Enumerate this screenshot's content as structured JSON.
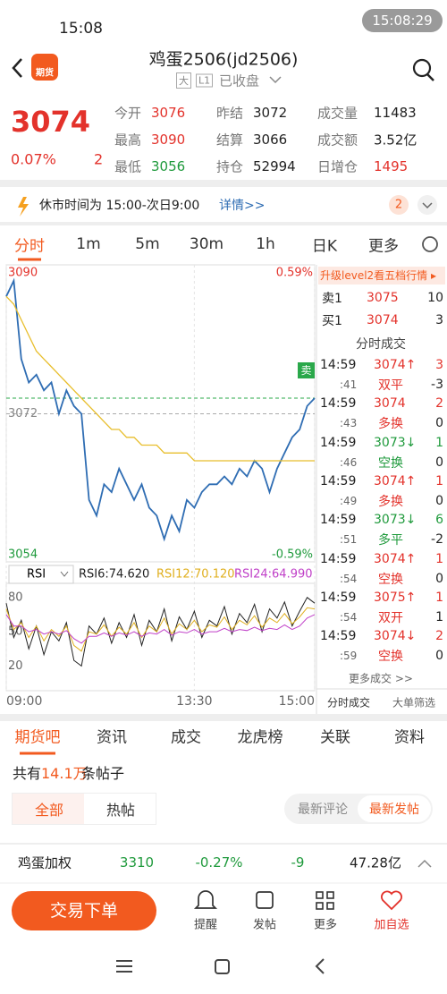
{
  "status_bar": {
    "time": "15:08",
    "clock": "15:08:29"
  },
  "header": {
    "logo": "期货",
    "title": "鸡蛋2506(jd2506)",
    "tags": [
      "大",
      "L1"
    ],
    "status": "已收盘"
  },
  "quote": {
    "price": "3074",
    "change_pct": "0.07%",
    "change": "2",
    "color": "#e3322b",
    "fields": [
      {
        "label": "今开",
        "value": "3076",
        "color": "#e3322b"
      },
      {
        "label": "昨结",
        "value": "3072",
        "color": "#222222"
      },
      {
        "label": "成交量",
        "value": "11483",
        "color": "#222222"
      },
      {
        "label": "最高",
        "value": "3090",
        "color": "#e3322b"
      },
      {
        "label": "结算",
        "value": "3066",
        "color": "#222222"
      },
      {
        "label": "成交额",
        "value": "3.52亿",
        "color": "#222222"
      },
      {
        "label": "最低",
        "value": "3056",
        "color": "#1f9a3c"
      },
      {
        "label": "持仓",
        "value": "52994",
        "color": "#222222"
      },
      {
        "label": "日增仓",
        "value": "1495",
        "color": "#e3322b"
      }
    ]
  },
  "notice": {
    "text": "休市时间为 15:00-次日9:00",
    "link": "详情>>",
    "badge": "2"
  },
  "tabs": {
    "items": [
      "分时",
      "1m",
      "5m",
      "30m",
      "1h",
      "日K",
      "更多"
    ],
    "active": 0
  },
  "chart_data": [
    {
      "type": "line",
      "xlim": [
        0,
        41
      ],
      "xticks": [
        {
          "value": 0,
          "label": "09:00"
        },
        {
          "value": 25,
          "label": "13:30"
        },
        {
          "value": 41,
          "label": "15:00"
        }
      ],
      "ylim": [
        3054,
        3090
      ],
      "yticks": [
        3054,
        3072,
        3090
      ],
      "y2lim": [
        -0.59,
        0.59
      ],
      "y2ticks": [
        {
          "value": 0.59,
          "label": "0.59%"
        },
        {
          "value": -0.59,
          "label": "-0.59%"
        }
      ],
      "reference": 3072,
      "ref_lines": [
        {
          "value": 3074,
          "color": "#2aa84a"
        },
        {
          "value": 3072,
          "color": "#aaaaaa"
        }
      ],
      "annotations": [
        {
          "text": "卖",
          "color": "#2aa84a"
        }
      ],
      "series": [
        {
          "color": "#2f6db3",
          "values": [
            3087,
            3089,
            3079,
            3076,
            3077,
            3075,
            3076,
            3072,
            3075,
            3073,
            3072,
            3061,
            3059,
            3063,
            3062,
            3065,
            3063,
            3061,
            3063,
            3060,
            3059,
            3056,
            3059,
            3057,
            3061,
            3060,
            3062,
            3063,
            3063,
            3064,
            3063,
            3065,
            3064,
            3066,
            3065,
            3062,
            3065,
            3067,
            3069,
            3070,
            3073,
            3074
          ]
        },
        {
          "color": "#e8be2c",
          "values": [
            3087,
            3086,
            3084,
            3082,
            3080,
            3079,
            3078,
            3077,
            3076,
            3075,
            3074,
            3073,
            3072,
            3071,
            3070,
            3070,
            3069,
            3069,
            3068,
            3068,
            3068,
            3067,
            3067,
            3067,
            3067,
            3066,
            3066,
            3066,
            3066,
            3066,
            3066,
            3066,
            3066,
            3066,
            3066,
            3066,
            3066,
            3066,
            3066,
            3066,
            3066,
            3066
          ]
        }
      ]
    },
    {
      "type": "line",
      "title": "RSI",
      "ylim": [
        0,
        90
      ],
      "yticks": [
        20,
        50,
        80
      ],
      "series": [
        {
          "name": "RSI6:74.620",
          "color": "#222222",
          "values": [
            75,
            45,
            60,
            35,
            55,
            30,
            50,
            42,
            58,
            25,
            20,
            55,
            48,
            62,
            40,
            58,
            45,
            65,
            38,
            60,
            50,
            70,
            42,
            63,
            52,
            68,
            45,
            60,
            55,
            72,
            48,
            66,
            58,
            74,
            50,
            70,
            62,
            76,
            55,
            68,
            80,
            75
          ]
        },
        {
          "name": "RSI12:70.120",
          "color": "#e0b020",
          "values": [
            70,
            52,
            58,
            45,
            55,
            42,
            52,
            46,
            55,
            38,
            33,
            50,
            48,
            56,
            46,
            54,
            48,
            58,
            45,
            55,
            50,
            62,
            48,
            57,
            52,
            60,
            50,
            56,
            54,
            63,
            52,
            60,
            56,
            64,
            54,
            62,
            58,
            66,
            57,
            63,
            71,
            70
          ]
        },
        {
          "name": "RSI24:64.990",
          "color": "#c040c8",
          "values": [
            65,
            55,
            55,
            50,
            52,
            48,
            50,
            48,
            51,
            44,
            40,
            46,
            46,
            49,
            46,
            49,
            47,
            50,
            46,
            49,
            48,
            52,
            47,
            50,
            49,
            52,
            48,
            50,
            50,
            53,
            50,
            52,
            51,
            54,
            51,
            53,
            52,
            56,
            52,
            55,
            62,
            65
          ]
        }
      ]
    }
  ],
  "side": {
    "upgrade": "升级level2看五档行情 ▸",
    "book": [
      {
        "label": "卖1",
        "price": "3075",
        "qty": "10"
      },
      {
        "label": "买1",
        "price": "3074",
        "qty": "3"
      }
    ],
    "title": "分时成交",
    "trades": [
      {
        "time": "14:59",
        "sec": ":41",
        "price": "3074↑",
        "qty": "3",
        "kind": "双平",
        "delta": "-3",
        "color": "#e3322b"
      },
      {
        "time": "14:59",
        "sec": ":43",
        "price": "3074",
        "qty": "2",
        "kind": "多换",
        "delta": "0",
        "color": "#e3322b"
      },
      {
        "time": "14:59",
        "sec": ":46",
        "price": "3073↓",
        "qty": "1",
        "kind": "空换",
        "delta": "0",
        "color": "#1f9a3c"
      },
      {
        "time": "14:59",
        "sec": ":49",
        "price": "3074↑",
        "qty": "1",
        "kind": "多换",
        "delta": "0",
        "color": "#e3322b"
      },
      {
        "time": "14:59",
        "sec": ":51",
        "price": "3073↓",
        "qty": "6",
        "kind": "多平",
        "delta": "-2",
        "color": "#1f9a3c"
      },
      {
        "time": "14:59",
        "sec": ":54",
        "price": "3074↑",
        "qty": "1",
        "kind": "空换",
        "delta": "0",
        "color": "#e3322b"
      },
      {
        "time": "14:59",
        "sec": ":54",
        "price": "3075↑",
        "qty": "1",
        "kind": "双开",
        "delta": "1",
        "color": "#e3322b"
      },
      {
        "time": "14:59",
        "sec": ":59",
        "price": "3074↓",
        "qty": "2",
        "kind": "空换",
        "delta": "0",
        "color": "#e3322b"
      }
    ],
    "more": "更多成交 >>",
    "buttons": [
      "分时成交",
      "大单筛选"
    ]
  },
  "community": {
    "tabs": [
      "期货吧",
      "资讯",
      "成交",
      "龙虎榜",
      "关联",
      "资料"
    ],
    "active": 0,
    "count_prefix": "共有",
    "count": "14.1万",
    "count_suffix": "条帖子",
    "filters": [
      "全部",
      "热帖"
    ],
    "sort": [
      "最新评论",
      "最新发帖"
    ]
  },
  "ticker": {
    "name": "鸡蛋加权",
    "price": "3310",
    "pct": "-0.27%",
    "change": "-9",
    "amount": "47.28亿"
  },
  "bottom": {
    "trade": "交易下单",
    "actions": [
      "提醒",
      "发帖",
      "更多",
      "加自选"
    ]
  }
}
